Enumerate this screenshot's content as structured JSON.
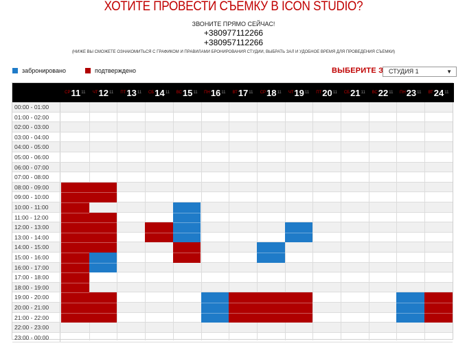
{
  "header": {
    "title": "ХОТИТЕ ПРОВЕСТИ СЪЕМКУ В ICON STUDIO?",
    "subtitle": "ЗВОНИТЕ ПРЯМО СЕЙЧАС!",
    "phone1": "+380977112266",
    "phone2": "+380957112266",
    "note": "(НИЖЕ ВЫ СМОЖЕТЕ ОЗНАКОМИТЬСЯ С ГРАФИКОМ И ПРАВИЛАМИ БРОНИРОВАНИЯ СТУДИИ, ВЫБРАТЬ ЗАЛ И УДОБНОЕ ВРЕМЯ ДЛЯ ПРОВЕДЕНИЯ СЪЕМКИ)"
  },
  "legend": {
    "booked_label": "забронировано",
    "confirmed_label": "подтверждено"
  },
  "colors": {
    "booked": "#1f7bc8",
    "confirmed": "#b00000",
    "header_bg": "#000000"
  },
  "hall": {
    "label": "ВЫБЕРИТЕ ЗАЛ:",
    "selected": "СТУДИЯ 1"
  },
  "days": [
    {
      "dow": "СР",
      "num": "11",
      "mon": "11"
    },
    {
      "dow": "ЧТ",
      "num": "12",
      "mon": "11"
    },
    {
      "dow": "ПТ",
      "num": "13",
      "mon": "11"
    },
    {
      "dow": "СБ",
      "num": "14",
      "mon": "11"
    },
    {
      "dow": "ВС",
      "num": "15",
      "mon": "11"
    },
    {
      "dow": "ПН",
      "num": "16",
      "mon": "11"
    },
    {
      "dow": "ВТ",
      "num": "17",
      "mon": "11"
    },
    {
      "dow": "СР",
      "num": "18",
      "mon": "11"
    },
    {
      "dow": "ЧТ",
      "num": "19",
      "mon": "11"
    },
    {
      "dow": "ПТ",
      "num": "20",
      "mon": "11"
    },
    {
      "dow": "СБ",
      "num": "21",
      "mon": "11"
    },
    {
      "dow": "ВС",
      "num": "22",
      "mon": "11"
    },
    {
      "dow": "ПН",
      "num": "23",
      "mon": "11"
    },
    {
      "dow": "ВТ",
      "num": "24",
      "mon": "11"
    }
  ],
  "times": [
    "00:00 - 01:00",
    "01:00 - 02:00",
    "02:00 - 03:00",
    "03:00 - 04:00",
    "04:00 - 05:00",
    "05:00 - 06:00",
    "06:00 - 07:00",
    "07:00 - 08:00",
    "08:00 - 09:00",
    "09:00 - 10:00",
    "10:00 - 11:00",
    "11:00 - 12:00",
    "12:00 - 13:00",
    "13:00 - 14:00",
    "14:00 - 15:00",
    "15:00 - 16:00",
    "16:00 - 17:00",
    "17:00 - 18:00",
    "18:00 - 19:00",
    "19:00 - 20:00",
    "20:00 - 21:00",
    "21:00 - 22:00",
    "22:00 - 23:00",
    "23:00 - 00:00"
  ],
  "bookings": [
    {
      "day": 0,
      "start": 8,
      "end": 22,
      "status": "confirmed"
    },
    {
      "day": 1,
      "start": 8,
      "end": 10,
      "status": "confirmed"
    },
    {
      "day": 1,
      "start": 11,
      "end": 15,
      "status": "confirmed"
    },
    {
      "day": 1,
      "start": 15,
      "end": 17,
      "status": "booked"
    },
    {
      "day": 1,
      "start": 19,
      "end": 22,
      "status": "confirmed"
    },
    {
      "day": 3,
      "start": 12,
      "end": 14,
      "status": "confirmed"
    },
    {
      "day": 4,
      "start": 10,
      "end": 14,
      "status": "booked"
    },
    {
      "day": 4,
      "start": 14,
      "end": 16,
      "status": "confirmed"
    },
    {
      "day": 5,
      "start": 19,
      "end": 22,
      "status": "booked"
    },
    {
      "day": 6,
      "start": 19,
      "end": 22,
      "status": "confirmed"
    },
    {
      "day": 7,
      "start": 14,
      "end": 16,
      "status": "booked"
    },
    {
      "day": 7,
      "start": 19,
      "end": 22,
      "status": "confirmed"
    },
    {
      "day": 8,
      "start": 12,
      "end": 14,
      "status": "booked"
    },
    {
      "day": 8,
      "start": 19,
      "end": 22,
      "status": "confirmed"
    },
    {
      "day": 12,
      "start": 19,
      "end": 22,
      "status": "booked"
    },
    {
      "day": 13,
      "start": 19,
      "end": 22,
      "status": "confirmed"
    }
  ]
}
